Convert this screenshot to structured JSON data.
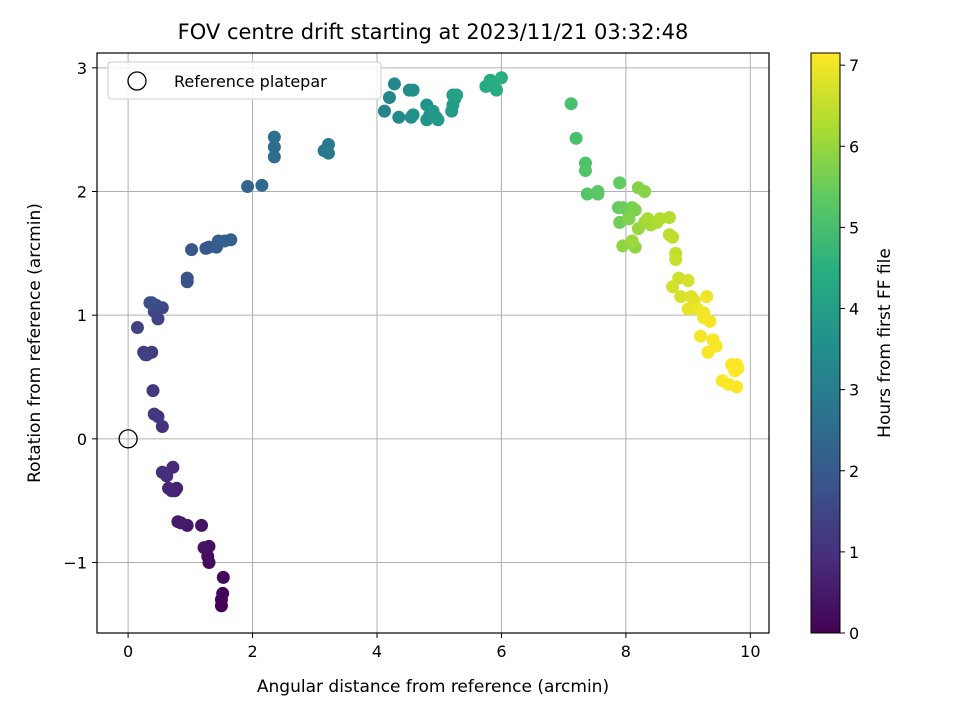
{
  "chart_data": {
    "type": "scatter",
    "title": "FOV centre drift starting at 2023/11/21 03:32:48",
    "xlabel": "Angular distance from reference (arcmin)",
    "ylabel": "Rotation from reference (arcmin)",
    "xlim": [
      -0.5,
      10.3
    ],
    "ylim": [
      -1.57,
      3.12
    ],
    "x_ticks": [
      0,
      2,
      4,
      6,
      8,
      10
    ],
    "x_tick_labels": [
      "0",
      "2",
      "4",
      "6",
      "8",
      "10"
    ],
    "y_ticks": [
      -1,
      0,
      1,
      2,
      3
    ],
    "y_tick_labels": [
      "−1",
      "0",
      "1",
      "2",
      "3"
    ],
    "grid": true,
    "legend": {
      "position": "top-left",
      "entries": [
        "Reference platepar"
      ]
    },
    "reference_point": {
      "x": 0,
      "y": 0,
      "label": "Reference platepar"
    },
    "colorbar": {
      "label": "Hours from first FF file",
      "colormap": "viridis",
      "range": [
        0,
        7.15
      ],
      "ticks": [
        0,
        1,
        2,
        3,
        4,
        5,
        6,
        7
      ],
      "tick_labels": [
        "0",
        "1",
        "2",
        "3",
        "4",
        "5",
        "6",
        "7"
      ]
    },
    "points": [
      {
        "x": 1.5,
        "y": -1.35,
        "c": 0.0
      },
      {
        "x": 1.5,
        "y": -1.3,
        "c": 0.05
      },
      {
        "x": 1.52,
        "y": -1.25,
        "c": 0.1
      },
      {
        "x": 1.53,
        "y": -1.12,
        "c": 0.15
      },
      {
        "x": 1.3,
        "y": -1.0,
        "c": 0.2
      },
      {
        "x": 1.28,
        "y": -0.95,
        "c": 0.25
      },
      {
        "x": 1.3,
        "y": -0.87,
        "c": 0.3
      },
      {
        "x": 1.22,
        "y": -0.88,
        "c": 0.35
      },
      {
        "x": 1.18,
        "y": -0.7,
        "c": 0.4
      },
      {
        "x": 0.95,
        "y": -0.7,
        "c": 0.45
      },
      {
        "x": 0.85,
        "y": -0.68,
        "c": 0.5
      },
      {
        "x": 0.8,
        "y": -0.67,
        "c": 0.55
      },
      {
        "x": 0.75,
        "y": -0.42,
        "c": 0.6
      },
      {
        "x": 0.78,
        "y": -0.4,
        "c": 0.65
      },
      {
        "x": 0.7,
        "y": -0.42,
        "c": 0.7
      },
      {
        "x": 0.65,
        "y": -0.4,
        "c": 0.75
      },
      {
        "x": 0.62,
        "y": -0.3,
        "c": 0.8
      },
      {
        "x": 0.72,
        "y": -0.23,
        "c": 0.85
      },
      {
        "x": 0.55,
        "y": -0.27,
        "c": 0.9
      },
      {
        "x": 0.6,
        "y": -0.28,
        "c": 0.95
      },
      {
        "x": 0.55,
        "y": 0.1,
        "c": 1.0
      },
      {
        "x": 0.48,
        "y": 0.18,
        "c": 1.05
      },
      {
        "x": 0.42,
        "y": 0.2,
        "c": 1.1
      },
      {
        "x": 0.4,
        "y": 0.39,
        "c": 1.15
      },
      {
        "x": 0.25,
        "y": 0.7,
        "c": 1.2
      },
      {
        "x": 0.3,
        "y": 0.68,
        "c": 1.25
      },
      {
        "x": 0.38,
        "y": 0.7,
        "c": 1.3
      },
      {
        "x": 0.28,
        "y": 0.68,
        "c": 1.35
      },
      {
        "x": 0.15,
        "y": 0.9,
        "c": 1.4
      },
      {
        "x": 0.48,
        "y": 0.97,
        "c": 1.45
      },
      {
        "x": 0.42,
        "y": 1.03,
        "c": 1.5
      },
      {
        "x": 0.55,
        "y": 1.06,
        "c": 1.55
      },
      {
        "x": 0.38,
        "y": 1.1,
        "c": 1.6
      },
      {
        "x": 0.45,
        "y": 1.08,
        "c": 1.65
      },
      {
        "x": 0.35,
        "y": 1.1,
        "c": 1.7
      },
      {
        "x": 0.95,
        "y": 1.27,
        "c": 1.8
      },
      {
        "x": 0.95,
        "y": 1.3,
        "c": 1.85
      },
      {
        "x": 1.02,
        "y": 1.53,
        "c": 1.9
      },
      {
        "x": 1.25,
        "y": 1.54,
        "c": 1.95
      },
      {
        "x": 1.3,
        "y": 1.55,
        "c": 2.0
      },
      {
        "x": 1.42,
        "y": 1.55,
        "c": 2.05
      },
      {
        "x": 1.45,
        "y": 1.6,
        "c": 2.1
      },
      {
        "x": 1.55,
        "y": 1.6,
        "c": 2.15
      },
      {
        "x": 1.65,
        "y": 1.61,
        "c": 2.2
      },
      {
        "x": 1.92,
        "y": 2.04,
        "c": 2.3
      },
      {
        "x": 2.15,
        "y": 2.05,
        "c": 2.4
      },
      {
        "x": 2.35,
        "y": 2.28,
        "c": 2.5
      },
      {
        "x": 2.35,
        "y": 2.36,
        "c": 2.55
      },
      {
        "x": 2.35,
        "y": 2.44,
        "c": 2.6
      },
      {
        "x": 3.15,
        "y": 2.33,
        "c": 2.8
      },
      {
        "x": 3.22,
        "y": 2.31,
        "c": 2.85
      },
      {
        "x": 3.22,
        "y": 2.38,
        "c": 2.9
      },
      {
        "x": 4.12,
        "y": 2.65,
        "c": 3.2
      },
      {
        "x": 4.2,
        "y": 2.76,
        "c": 3.25
      },
      {
        "x": 4.28,
        "y": 2.87,
        "c": 3.3
      },
      {
        "x": 4.35,
        "y": 2.6,
        "c": 3.35
      },
      {
        "x": 4.52,
        "y": 2.82,
        "c": 3.4
      },
      {
        "x": 4.58,
        "y": 2.82,
        "c": 3.45
      },
      {
        "x": 4.55,
        "y": 2.6,
        "c": 3.5
      },
      {
        "x": 4.58,
        "y": 2.62,
        "c": 3.55
      },
      {
        "x": 4.8,
        "y": 2.7,
        "c": 3.6
      },
      {
        "x": 4.85,
        "y": 2.62,
        "c": 3.65
      },
      {
        "x": 4.8,
        "y": 2.58,
        "c": 3.7
      },
      {
        "x": 4.9,
        "y": 2.65,
        "c": 3.75
      },
      {
        "x": 4.95,
        "y": 2.6,
        "c": 3.8
      },
      {
        "x": 4.98,
        "y": 2.58,
        "c": 3.85
      },
      {
        "x": 5.2,
        "y": 2.65,
        "c": 3.9
      },
      {
        "x": 5.22,
        "y": 2.7,
        "c": 3.95
      },
      {
        "x": 5.25,
        "y": 2.75,
        "c": 4.0
      },
      {
        "x": 5.22,
        "y": 2.78,
        "c": 4.05
      },
      {
        "x": 5.28,
        "y": 2.78,
        "c": 4.1
      },
      {
        "x": 5.75,
        "y": 2.85,
        "c": 4.3
      },
      {
        "x": 5.82,
        "y": 2.9,
        "c": 4.35
      },
      {
        "x": 5.88,
        "y": 2.88,
        "c": 4.4
      },
      {
        "x": 5.92,
        "y": 2.82,
        "c": 4.45
      },
      {
        "x": 6.0,
        "y": 2.92,
        "c": 4.5
      },
      {
        "x": 7.12,
        "y": 2.71,
        "c": 5.0
      },
      {
        "x": 7.2,
        "y": 2.43,
        "c": 5.05
      },
      {
        "x": 7.35,
        "y": 2.23,
        "c": 5.1
      },
      {
        "x": 7.35,
        "y": 2.17,
        "c": 5.15
      },
      {
        "x": 7.38,
        "y": 1.98,
        "c": 5.2
      },
      {
        "x": 7.55,
        "y": 1.98,
        "c": 5.25
      },
      {
        "x": 7.55,
        "y": 2.0,
        "c": 5.3
      },
      {
        "x": 7.9,
        "y": 2.07,
        "c": 5.4
      },
      {
        "x": 7.88,
        "y": 1.87,
        "c": 5.45
      },
      {
        "x": 7.95,
        "y": 1.87,
        "c": 5.5
      },
      {
        "x": 7.9,
        "y": 1.75,
        "c": 5.55
      },
      {
        "x": 8.05,
        "y": 1.82,
        "c": 5.6
      },
      {
        "x": 8.1,
        "y": 1.87,
        "c": 5.65
      },
      {
        "x": 8.15,
        "y": 1.85,
        "c": 5.7
      },
      {
        "x": 8.05,
        "y": 1.78,
        "c": 5.75
      },
      {
        "x": 8.2,
        "y": 2.03,
        "c": 5.8
      },
      {
        "x": 8.3,
        "y": 2.0,
        "c": 5.85
      },
      {
        "x": 7.95,
        "y": 1.56,
        "c": 5.9
      },
      {
        "x": 8.15,
        "y": 1.55,
        "c": 5.95
      },
      {
        "x": 8.2,
        "y": 1.7,
        "c": 6.0
      },
      {
        "x": 8.1,
        "y": 1.6,
        "c": 6.05
      },
      {
        "x": 8.3,
        "y": 1.75,
        "c": 6.1
      },
      {
        "x": 8.4,
        "y": 1.73,
        "c": 6.15
      },
      {
        "x": 8.35,
        "y": 1.78,
        "c": 6.2
      },
      {
        "x": 8.5,
        "y": 1.75,
        "c": 6.25
      },
      {
        "x": 8.55,
        "y": 1.78,
        "c": 6.3
      },
      {
        "x": 8.7,
        "y": 1.79,
        "c": 6.35
      },
      {
        "x": 8.7,
        "y": 1.65,
        "c": 6.4
      },
      {
        "x": 8.75,
        "y": 1.63,
        "c": 6.45
      },
      {
        "x": 8.8,
        "y": 1.5,
        "c": 6.5
      },
      {
        "x": 8.8,
        "y": 1.45,
        "c": 6.55
      },
      {
        "x": 8.85,
        "y": 1.3,
        "c": 6.6
      },
      {
        "x": 8.75,
        "y": 1.23,
        "c": 6.65
      },
      {
        "x": 9.0,
        "y": 1.28,
        "c": 6.7
      },
      {
        "x": 8.88,
        "y": 1.15,
        "c": 6.75
      },
      {
        "x": 9.05,
        "y": 1.15,
        "c": 6.8
      },
      {
        "x": 9.1,
        "y": 1.12,
        "c": 6.85
      },
      {
        "x": 9.0,
        "y": 1.05,
        "c": 6.9
      },
      {
        "x": 9.15,
        "y": 1.05,
        "c": 6.95
      },
      {
        "x": 9.25,
        "y": 1.02,
        "c": 7.0
      },
      {
        "x": 9.3,
        "y": 1.15,
        "c": 7.0
      },
      {
        "x": 9.2,
        "y": 0.83,
        "c": 7.05
      },
      {
        "x": 9.25,
        "y": 0.98,
        "c": 7.05
      },
      {
        "x": 9.35,
        "y": 0.95,
        "c": 7.05
      },
      {
        "x": 9.4,
        "y": 0.8,
        "c": 7.1
      },
      {
        "x": 9.45,
        "y": 0.75,
        "c": 7.1
      },
      {
        "x": 9.32,
        "y": 0.7,
        "c": 7.1
      },
      {
        "x": 9.55,
        "y": 0.47,
        "c": 7.12
      },
      {
        "x": 9.65,
        "y": 0.44,
        "c": 7.12
      },
      {
        "x": 9.7,
        "y": 0.6,
        "c": 7.15
      },
      {
        "x": 9.75,
        "y": 0.55,
        "c": 7.15
      },
      {
        "x": 9.8,
        "y": 0.57,
        "c": 7.15
      },
      {
        "x": 9.78,
        "y": 0.6,
        "c": 7.15
      },
      {
        "x": 9.78,
        "y": 0.42,
        "c": 7.15
      }
    ]
  }
}
